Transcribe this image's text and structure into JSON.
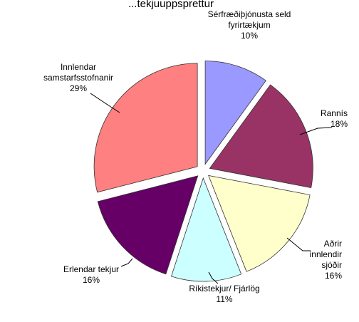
{
  "chart_data": {
    "type": "pie",
    "title": "...tekjuuppsprettur",
    "slices": [
      {
        "label_lines": [
          "Sérfræðiþjónusta seld",
          "fyrirtækjum"
        ],
        "value": 10,
        "pct": "10%",
        "color": "#9999ff"
      },
      {
        "label_lines": [
          "Rannís"
        ],
        "value": 18,
        "pct": "18%",
        "color": "#993366"
      },
      {
        "label_lines": [
          "Aðrir",
          "innlendir",
          "sjóðir"
        ],
        "value": 16,
        "pct": "16%",
        "color": "#ffffcc"
      },
      {
        "label_lines": [
          "Ríkistekjur/ Fjárlög"
        ],
        "value": 11,
        "pct": "11%",
        "color": "#ccffff"
      },
      {
        "label_lines": [
          "Erlendar tekjur"
        ],
        "value": 16,
        "pct": "16%",
        "color": "#660066"
      },
      {
        "label_lines": [
          "Innlendar",
          "samstarfsstofnanir"
        ],
        "value": 29,
        "pct": "29%",
        "color": "#ff8080"
      }
    ]
  }
}
